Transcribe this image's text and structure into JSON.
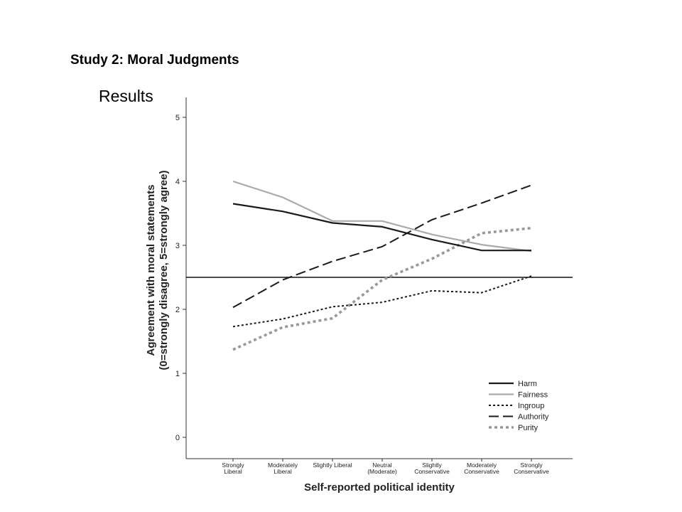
{
  "slide": {
    "heading": "Study 2: Moral Judgments",
    "subheading": "Results"
  },
  "chart_data": {
    "type": "line",
    "xlabel": "Self-reported political identity",
    "ylabel_lines": [
      "Agreement with moral statements",
      "(0=strongly disagree, 5=strongly agree)"
    ],
    "ylim": [
      0,
      5
    ],
    "yticks": [
      0,
      1,
      2,
      3,
      4,
      5
    ],
    "categories": [
      [
        "Strongly",
        "Liberal"
      ],
      [
        "Moderately",
        "Liberal"
      ],
      [
        "Slightly Liberal"
      ],
      [
        "Neutral",
        "(Moderate)"
      ],
      [
        "Slightly",
        "Conservative"
      ],
      [
        "Moderately",
        "Conservative"
      ],
      [
        "Strongly",
        "Conservative"
      ]
    ],
    "reference_line": 2.5,
    "grid": false,
    "legend_position": "bottom-right",
    "series": [
      {
        "name": "Harm",
        "color": "#1a1a1a",
        "style": "solid",
        "values": [
          3.65,
          3.53,
          3.35,
          3.29,
          3.09,
          2.92,
          2.92
        ]
      },
      {
        "name": "Fairness",
        "color": "#aaaaaa",
        "style": "solid",
        "values": [
          4.0,
          3.75,
          3.38,
          3.38,
          3.17,
          3.01,
          2.91
        ]
      },
      {
        "name": "Ingroup",
        "color": "#1a1a1a",
        "style": "dotted",
        "values": [
          1.73,
          1.85,
          2.04,
          2.11,
          2.29,
          2.26,
          2.52
        ]
      },
      {
        "name": "Authority",
        "color": "#1a1a1a",
        "style": "dashed",
        "values": [
          2.03,
          2.46,
          2.75,
          2.98,
          3.4,
          3.66,
          3.94
        ]
      },
      {
        "name": "Purity",
        "color": "#999999",
        "style": "dotted-thick",
        "values": [
          1.37,
          1.72,
          1.86,
          2.46,
          2.79,
          3.19,
          3.27
        ]
      }
    ]
  }
}
